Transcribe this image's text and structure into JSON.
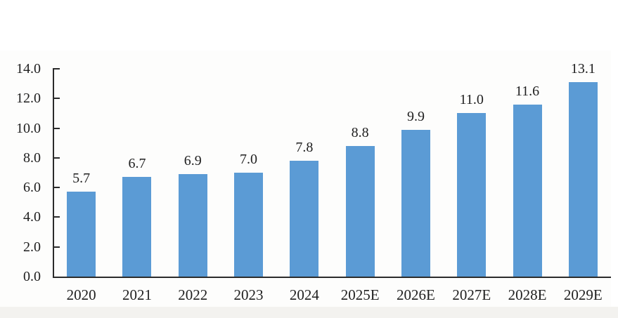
{
  "page": {
    "background": "#ffffff",
    "footer_band_color": "#f3f2ef",
    "chart_card_color": "#fdfdfc"
  },
  "chart_data": {
    "type": "bar",
    "title": "",
    "xlabel": "",
    "ylabel": "",
    "categories": [
      "2020",
      "2021",
      "2022",
      "2023",
      "2024",
      "2025E",
      "2026E",
      "2027E",
      "2028E",
      "2029E"
    ],
    "values": [
      5.7,
      6.7,
      6.9,
      7.0,
      7.8,
      8.8,
      9.9,
      11.0,
      11.6,
      13.1
    ],
    "value_labels": [
      "5.7",
      "6.7",
      "6.9",
      "7.0",
      "7.8",
      "8.8",
      "9.9",
      "11.0",
      "11.6",
      "13.1"
    ],
    "ylim": [
      0,
      14
    ],
    "ytick_step": 2,
    "ytick_labels": [
      "0.0",
      "2.0",
      "4.0",
      "6.0",
      "8.0",
      "10.0",
      "12.0",
      "14.0"
    ],
    "grid": false,
    "legend": null,
    "bar_color": "#5b9bd5",
    "axis_color": "#2b2b2b",
    "text_color": "#1f1f1f"
  }
}
